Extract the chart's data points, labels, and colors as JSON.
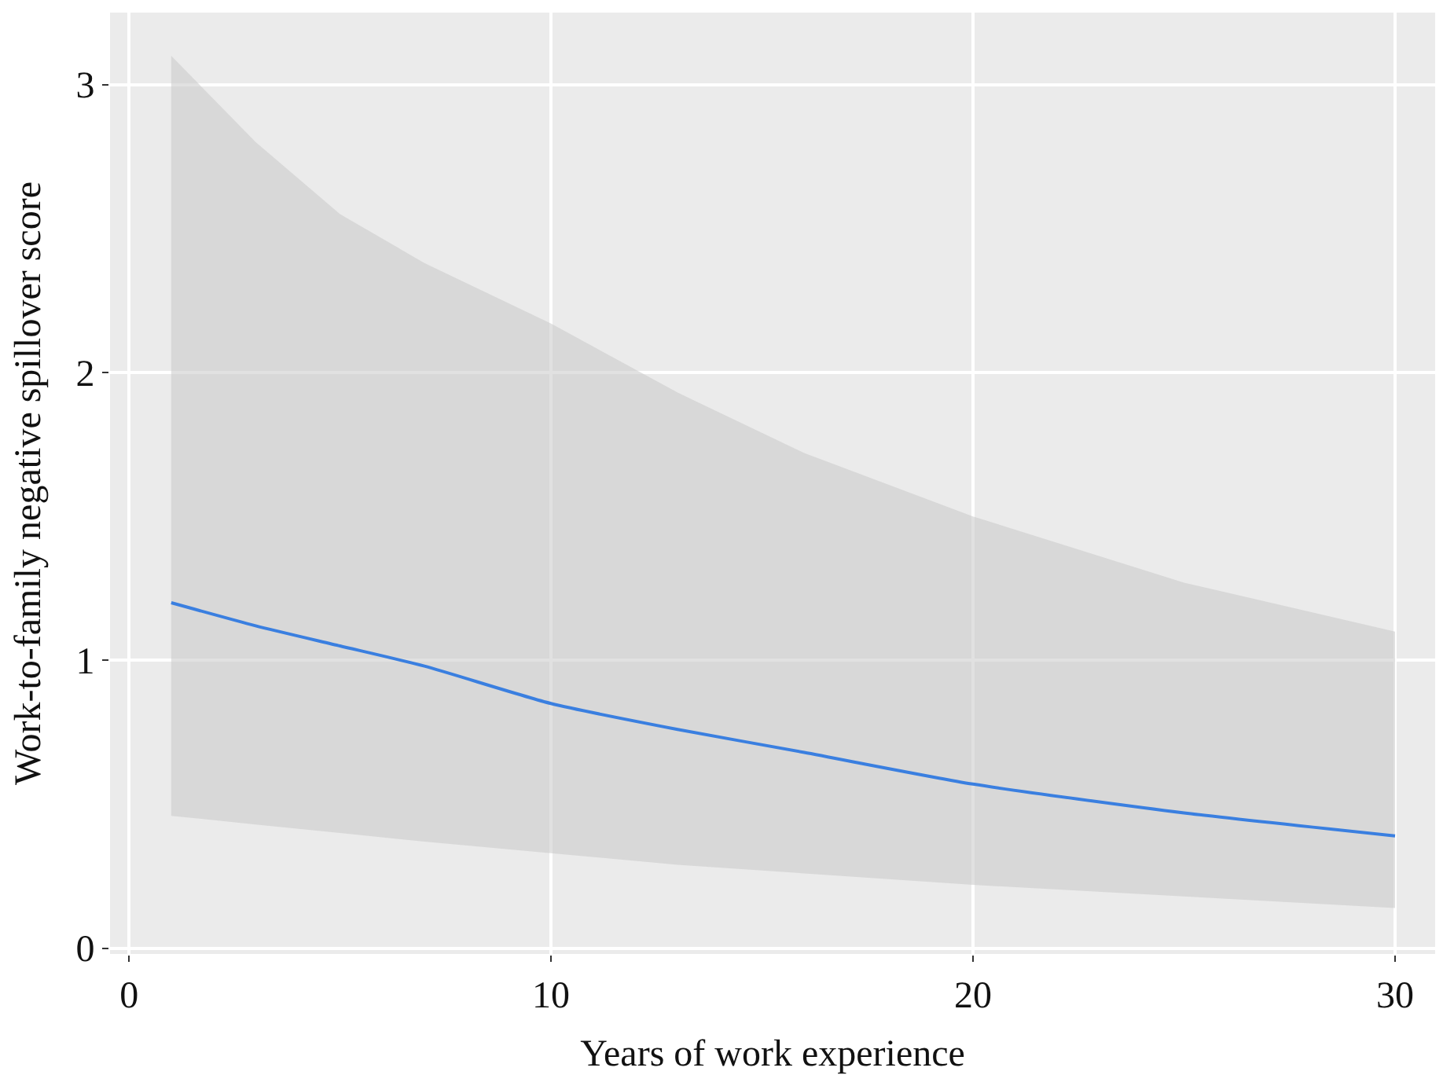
{
  "chart_data": {
    "type": "line",
    "xlabel": "Years of work experience",
    "ylabel": "Work-to-family negative spillover score",
    "x": [
      1,
      3,
      5,
      7,
      10,
      13,
      16,
      20,
      25,
      30
    ],
    "series": [
      {
        "color": "#3a7fe0",
        "values": [
          1.2,
          1.12,
          1.05,
          0.98,
          0.85,
          0.76,
          0.68,
          0.57,
          0.47,
          0.39
        ],
        "lower": [
          0.46,
          0.43,
          0.4,
          0.37,
          0.33,
          0.29,
          0.26,
          0.22,
          0.18,
          0.14
        ],
        "upper": [
          3.1,
          2.8,
          2.55,
          2.38,
          2.17,
          1.93,
          1.72,
          1.5,
          1.27,
          1.1
        ]
      }
    ],
    "xlim": [
      -0.45,
      30.95
    ],
    "ylim": [
      -0.02,
      3.25
    ],
    "xticks": [
      0,
      10,
      20,
      30
    ],
    "yticks": [
      0,
      1,
      2,
      3
    ],
    "grid": true,
    "marker": "none",
    "line_style": "solid"
  }
}
